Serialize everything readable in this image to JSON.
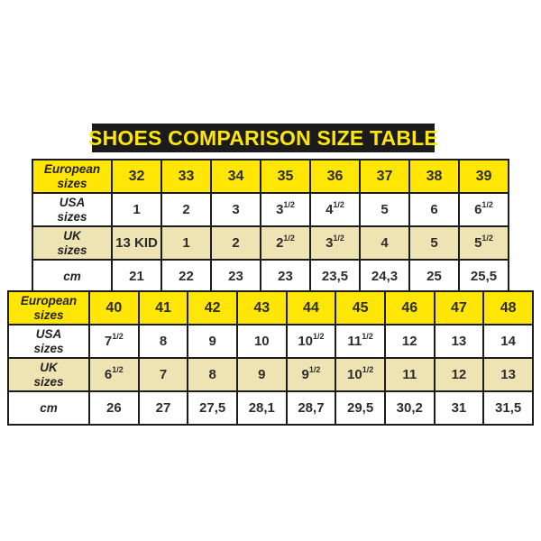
{
  "title": "SHOES COMPARISON SIZE TABLE",
  "colors": {
    "title_bg": "#1b1b1b",
    "title_text": "#ffe605",
    "european_row_bg": "#ffe605",
    "usa_row_bg": "#ffffff",
    "uk_row_bg": "#eee3b2",
    "cm_row_bg": "#ffffff",
    "border": "#1c1c1c",
    "text": "#2d2d2d"
  },
  "chart_data": [
    {
      "type": "table",
      "name": "shoe-sizes-32-39",
      "rows": [
        {
          "key": "european",
          "label": "European\nsizes",
          "values": [
            "32",
            "33",
            "34",
            "35",
            "36",
            "37",
            "38",
            "39"
          ]
        },
        {
          "key": "usa",
          "label": "USA\nsizes",
          "values": [
            "1",
            "2",
            "3",
            "3^1/2",
            "4^1/2",
            "5",
            "6",
            "6^1/2"
          ]
        },
        {
          "key": "uk",
          "label": "UK\nsizes",
          "values": [
            "13 KID",
            "1",
            "2",
            "2^1/2",
            "3^1/2",
            "4",
            "5",
            "5^1/2"
          ]
        },
        {
          "key": "cm",
          "label": "cm",
          "values": [
            "21",
            "22",
            "23",
            "23",
            "23,5",
            "24,3",
            "25",
            "25,5"
          ]
        }
      ]
    },
    {
      "type": "table",
      "name": "shoe-sizes-40-48",
      "rows": [
        {
          "key": "european",
          "label": "European\nsizes",
          "values": [
            "40",
            "41",
            "42",
            "43",
            "44",
            "45",
            "46",
            "47",
            "48"
          ]
        },
        {
          "key": "usa",
          "label": "USA\nsizes",
          "values": [
            "7^1/2",
            "8",
            "9",
            "10",
            "10^1/2",
            "11^1/2",
            "12",
            "13",
            "14"
          ]
        },
        {
          "key": "uk",
          "label": "UK\nsizes",
          "values": [
            "6^1/2",
            "7",
            "8",
            "9",
            "9^1/2",
            "10^1/2",
            "11",
            "12",
            "13"
          ]
        },
        {
          "key": "cm",
          "label": "cm",
          "values": [
            "26",
            "27",
            "27,5",
            "28,1",
            "28,7",
            "29,5",
            "30,2",
            "31",
            "31,5"
          ]
        }
      ]
    }
  ]
}
